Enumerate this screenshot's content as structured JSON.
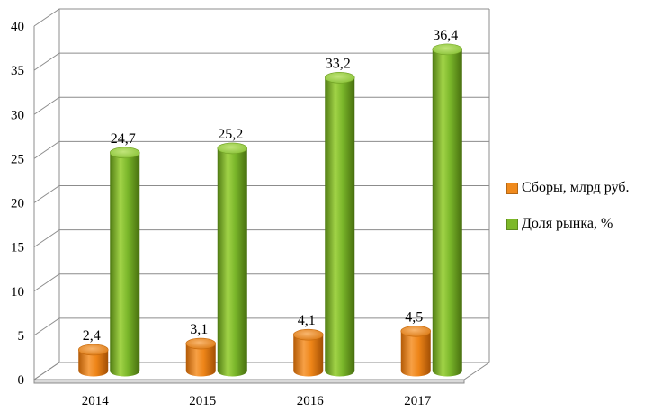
{
  "chart_data": {
    "type": "bar",
    "title": "",
    "xlabel": "",
    "ylabel": "",
    "categories": [
      "2014",
      "2015",
      "2016",
      "2017"
    ],
    "series": [
      {
        "name": "Сборы, млрд руб.",
        "values": [
          2.4,
          3.1,
          4.1,
          4.5
        ],
        "labels": [
          "2,4",
          "3,1",
          "4,1",
          "4,5"
        ],
        "color": "#f08a1c"
      },
      {
        "name": "Доля рынка, %",
        "values": [
          24.7,
          25.2,
          33.2,
          36.4
        ],
        "labels": [
          "24,7",
          "25,2",
          "33,2",
          "36,4"
        ],
        "color": "#7db829"
      }
    ],
    "ylim": [
      0,
      40
    ],
    "yticks": [
      0,
      5,
      10,
      15,
      20,
      25,
      30,
      35,
      40
    ],
    "grid": true,
    "legend_position": "right",
    "style": "3d-cylinder"
  }
}
